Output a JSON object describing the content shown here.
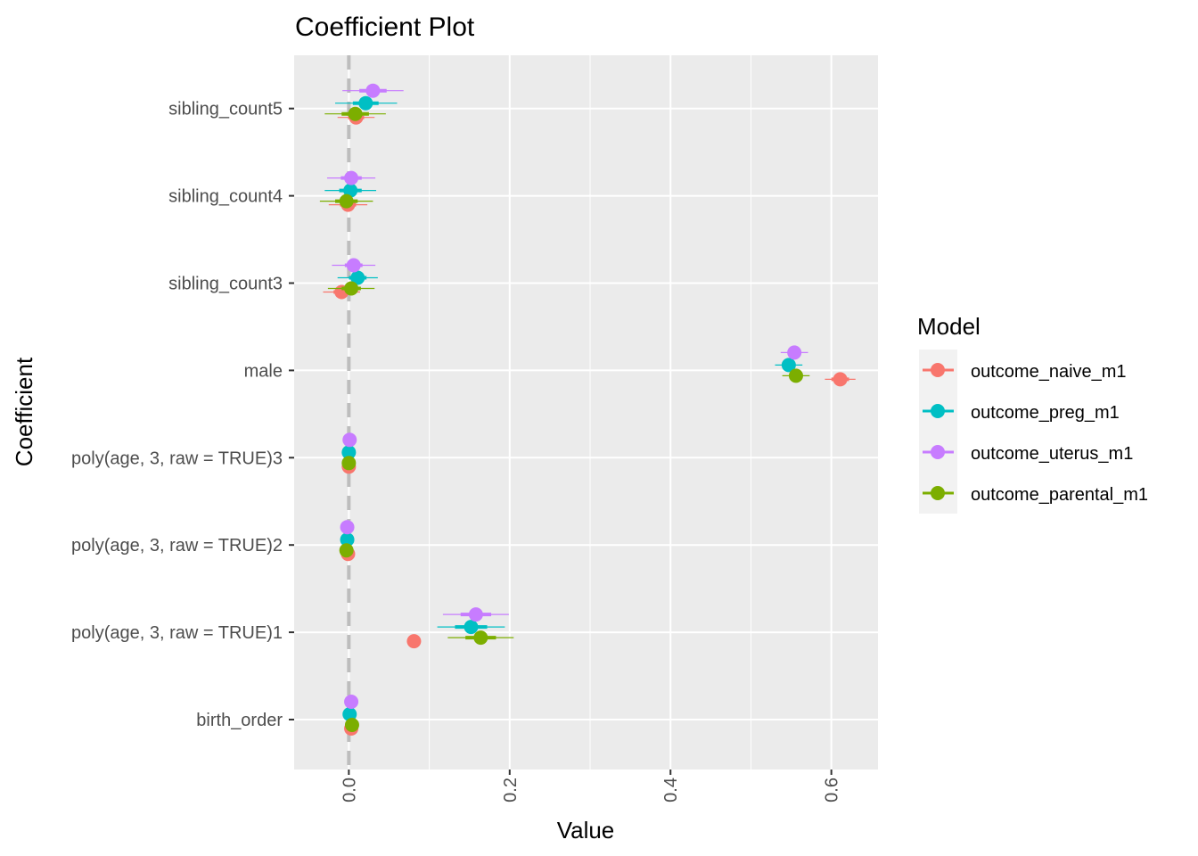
{
  "chart_data": {
    "type": "coefficient-dotplot",
    "title": "Coefficient Plot",
    "xlabel": "Value",
    "ylabel": "Coefficient",
    "xlim": [
      -0.068,
      0.658
    ],
    "xticks": [
      0.0,
      0.2,
      0.4,
      0.6
    ],
    "xtick_labels": [
      "0.0",
      "0.2",
      "0.4",
      "0.6"
    ],
    "reference_line": 0,
    "grid": true,
    "legend_title": "Model",
    "legend_position": "right",
    "categories": [
      "birth_order",
      "poly(age, 3, raw = TRUE)1",
      "poly(age, 3, raw = TRUE)2",
      "poly(age, 3, raw = TRUE)3",
      "male",
      "sibling_count3",
      "sibling_count4",
      "sibling_count5"
    ],
    "series": [
      {
        "name": "outcome_naive_m1",
        "color": "#F8766D",
        "values": [
          0.003,
          0.081,
          -0.001,
          0.0,
          0.611,
          -0.009,
          -0.001,
          0.009
        ],
        "inner": [
          [
            -0.001,
            0.007
          ],
          [
            0.077,
            0.085
          ],
          [
            -0.002,
            0.0
          ],
          [
            -0.001,
            0.001
          ],
          [
            0.6,
            0.622
          ],
          [
            -0.019,
            0.001
          ],
          [
            -0.011,
            0.009
          ],
          [
            -0.001,
            0.019
          ]
        ],
        "outer": [
          [
            -0.003,
            0.009
          ],
          [
            0.074,
            0.088
          ],
          [
            -0.003,
            0.001
          ],
          [
            -0.001,
            0.001
          ],
          [
            0.592,
            0.63
          ],
          [
            -0.032,
            0.014
          ],
          [
            -0.025,
            0.023
          ],
          [
            -0.014,
            0.032
          ]
        ]
      },
      {
        "name": "outcome_preg_m1",
        "color": "#00BFC4",
        "values": [
          0.001,
          0.152,
          -0.002,
          0.0,
          0.547,
          0.011,
          0.002,
          0.021
        ],
        "inner": [
          [
            -0.004,
            0.006
          ],
          [
            0.132,
            0.172
          ],
          [
            -0.004,
            0.0
          ],
          [
            -0.001,
            0.001
          ],
          [
            0.539,
            0.555
          ],
          [
            0.0,
            0.022
          ],
          [
            -0.012,
            0.016
          ],
          [
            0.005,
            0.037
          ]
        ],
        "outer": [
          [
            -0.007,
            0.009
          ],
          [
            0.11,
            0.194
          ],
          [
            -0.005,
            0.001
          ],
          [
            -0.002,
            0.002
          ],
          [
            0.53,
            0.564
          ],
          [
            -0.014,
            0.036
          ],
          [
            -0.03,
            0.034
          ],
          [
            -0.017,
            0.06
          ]
        ]
      },
      {
        "name": "outcome_uterus_m1",
        "color": "#C77CFF",
        "values": [
          0.003,
          0.158,
          -0.002,
          0.001,
          0.554,
          0.006,
          0.003,
          0.03
        ],
        "inner": [
          [
            -0.002,
            0.008
          ],
          [
            0.139,
            0.177
          ],
          [
            -0.004,
            0.0
          ],
          [
            0.0,
            0.002
          ],
          [
            0.546,
            0.562
          ],
          [
            -0.005,
            0.017
          ],
          [
            -0.01,
            0.016
          ],
          [
            0.013,
            0.047
          ]
        ],
        "outer": [
          [
            -0.005,
            0.011
          ],
          [
            0.117,
            0.199
          ],
          [
            -0.005,
            0.001
          ],
          [
            -0.001,
            0.003
          ],
          [
            0.537,
            0.571
          ],
          [
            -0.021,
            0.033
          ],
          [
            -0.027,
            0.033
          ],
          [
            -0.008,
            0.068
          ]
        ]
      },
      {
        "name": "outcome_parental_m1",
        "color": "#7CAE00",
        "values": [
          0.004,
          0.164,
          -0.003,
          0.0,
          0.556,
          0.003,
          -0.003,
          0.008
        ],
        "inner": [
          [
            -0.001,
            0.009
          ],
          [
            0.145,
            0.183
          ],
          [
            -0.005,
            -0.001
          ],
          [
            -0.001,
            0.001
          ],
          [
            0.548,
            0.564
          ],
          [
            -0.009,
            0.015
          ],
          [
            -0.017,
            0.011
          ],
          [
            -0.009,
            0.025
          ]
        ],
        "outer": [
          [
            -0.004,
            0.012
          ],
          [
            0.123,
            0.205
          ],
          [
            -0.006,
            0.0
          ],
          [
            -0.002,
            0.002
          ],
          [
            0.539,
            0.573
          ],
          [
            -0.026,
            0.032
          ],
          [
            -0.036,
            0.03
          ],
          [
            -0.03,
            0.046
          ]
        ]
      }
    ]
  }
}
